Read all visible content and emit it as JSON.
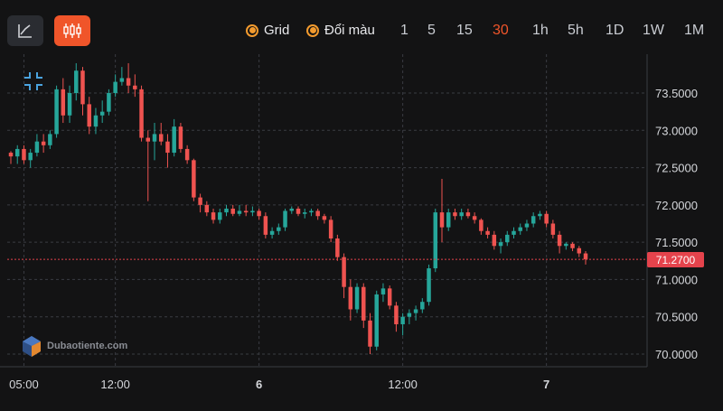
{
  "toolbar": {
    "line_tool_icon": "line-chart-icon",
    "candle_tool_icon": "candlestick-icon",
    "grid_label": "Grid",
    "color_label": "Đổi màu",
    "timeframes": [
      "1",
      "5",
      "15",
      "30",
      "1h",
      "5h",
      "1D",
      "1W",
      "1M"
    ],
    "active_timeframe": "30",
    "accent_color": "#f0552a"
  },
  "watermark": {
    "text": "Dubaotiente.com"
  },
  "current_price": "71.2700",
  "colors": {
    "up": "#26a69a",
    "down": "#ef5350",
    "price_line": "#e5434c"
  },
  "chart_data": {
    "type": "candlestick",
    "title": "",
    "ylim": [
      70.0,
      74.0
    ],
    "y_ticks": [
      "73.5000",
      "73.0000",
      "72.5000",
      "72.0000",
      "71.5000",
      "71.0000",
      "70.5000",
      "70.0000"
    ],
    "y_tick_values": [
      73.5,
      73.0,
      72.5,
      72.0,
      71.5,
      71.0,
      70.5,
      70.0
    ],
    "x_ticks": [
      {
        "label": "05:00",
        "index": 2,
        "bold": false
      },
      {
        "label": "12:00",
        "index": 16,
        "bold": false
      },
      {
        "label": "6",
        "index": 38,
        "bold": true
      },
      {
        "label": "12:00",
        "index": 60,
        "bold": false
      },
      {
        "label": "7",
        "index": 82,
        "bold": true
      }
    ],
    "grid": true,
    "candles": [
      [
        72.7,
        72.72,
        72.55,
        72.65
      ],
      [
        72.65,
        72.8,
        72.55,
        72.75
      ],
      [
        72.75,
        72.8,
        72.55,
        72.6
      ],
      [
        72.6,
        72.75,
        72.5,
        72.7
      ],
      [
        72.7,
        72.95,
        72.65,
        72.85
      ],
      [
        72.85,
        72.95,
        72.7,
        72.8
      ],
      [
        72.8,
        73.0,
        72.75,
        72.95
      ],
      [
        72.95,
        73.6,
        72.9,
        73.55
      ],
      [
        73.55,
        73.7,
        73.1,
        73.2
      ],
      [
        73.2,
        73.6,
        73.1,
        73.5
      ],
      [
        73.5,
        73.9,
        73.4,
        73.8
      ],
      [
        73.8,
        73.85,
        73.2,
        73.35
      ],
      [
        73.35,
        73.45,
        72.95,
        73.05
      ],
      [
        73.05,
        73.3,
        72.95,
        73.2
      ],
      [
        73.2,
        73.4,
        73.1,
        73.25
      ],
      [
        73.25,
        73.55,
        73.2,
        73.5
      ],
      [
        73.5,
        73.75,
        73.45,
        73.65
      ],
      [
        73.65,
        73.85,
        73.6,
        73.7
      ],
      [
        73.7,
        73.9,
        73.5,
        73.6
      ],
      [
        73.6,
        73.75,
        73.45,
        73.55
      ],
      [
        73.55,
        73.6,
        72.85,
        72.9
      ],
      [
        72.9,
        73.0,
        72.05,
        72.85
      ],
      [
        72.85,
        73.1,
        72.6,
        72.95
      ],
      [
        72.95,
        73.1,
        72.8,
        72.85
      ],
      [
        72.85,
        72.95,
        72.5,
        72.7
      ],
      [
        72.7,
        73.15,
        72.65,
        73.05
      ],
      [
        73.05,
        73.1,
        72.7,
        72.75
      ],
      [
        72.75,
        72.8,
        72.55,
        72.6
      ],
      [
        72.6,
        72.62,
        72.05,
        72.1
      ],
      [
        72.1,
        72.15,
        71.9,
        72.0
      ],
      [
        72.0,
        72.05,
        71.85,
        71.9
      ],
      [
        71.9,
        71.95,
        71.75,
        71.8
      ],
      [
        71.8,
        71.95,
        71.75,
        71.9
      ],
      [
        71.9,
        72.0,
        71.85,
        71.95
      ],
      [
        71.95,
        72.0,
        71.85,
        71.88
      ],
      [
        71.88,
        72.0,
        71.85,
        71.92
      ],
      [
        71.92,
        72.0,
        71.85,
        71.9
      ],
      [
        71.9,
        71.98,
        71.85,
        71.92
      ],
      [
        71.92,
        71.95,
        71.8,
        71.85
      ],
      [
        71.85,
        71.9,
        71.55,
        71.6
      ],
      [
        71.6,
        71.7,
        71.55,
        71.65
      ],
      [
        71.65,
        71.75,
        71.6,
        71.7
      ],
      [
        71.7,
        71.95,
        71.65,
        71.92
      ],
      [
        71.92,
        71.98,
        71.88,
        71.95
      ],
      [
        71.95,
        71.98,
        71.85,
        71.88
      ],
      [
        71.88,
        71.95,
        71.82,
        71.9
      ],
      [
        71.9,
        71.95,
        71.85,
        71.92
      ],
      [
        71.92,
        71.95,
        71.8,
        71.85
      ],
      [
        71.85,
        71.88,
        71.75,
        71.8
      ],
      [
        71.8,
        71.85,
        71.5,
        71.55
      ],
      [
        71.55,
        71.6,
        71.25,
        71.3
      ],
      [
        71.3,
        71.35,
        70.75,
        70.9
      ],
      [
        70.9,
        71.0,
        70.45,
        70.6
      ],
      [
        70.6,
        70.95,
        70.55,
        70.9
      ],
      [
        70.9,
        70.95,
        70.35,
        70.45
      ],
      [
        70.45,
        70.55,
        70.0,
        70.1
      ],
      [
        70.1,
        70.85,
        70.05,
        70.8
      ],
      [
        70.8,
        70.95,
        70.7,
        70.88
      ],
      [
        70.88,
        70.92,
        70.6,
        70.65
      ],
      [
        70.65,
        70.7,
        70.3,
        70.4
      ],
      [
        70.4,
        70.55,
        70.25,
        70.5
      ],
      [
        70.5,
        70.6,
        70.4,
        70.55
      ],
      [
        70.55,
        70.65,
        70.45,
        70.6
      ],
      [
        70.6,
        70.75,
        70.55,
        70.7
      ],
      [
        70.7,
        71.2,
        70.65,
        71.15
      ],
      [
        71.15,
        71.95,
        71.1,
        71.9
      ],
      [
        71.9,
        72.35,
        71.5,
        71.7
      ],
      [
        71.7,
        71.95,
        71.65,
        71.9
      ],
      [
        71.9,
        71.95,
        71.8,
        71.85
      ],
      [
        71.85,
        71.95,
        71.8,
        71.9
      ],
      [
        71.9,
        71.95,
        71.82,
        71.85
      ],
      [
        71.85,
        71.9,
        71.75,
        71.8
      ],
      [
        71.8,
        71.82,
        71.6,
        71.65
      ],
      [
        71.65,
        71.7,
        71.55,
        71.6
      ],
      [
        71.6,
        71.65,
        71.4,
        71.45
      ],
      [
        71.45,
        71.55,
        71.35,
        71.5
      ],
      [
        71.5,
        71.65,
        71.45,
        71.6
      ],
      [
        71.6,
        71.7,
        71.55,
        71.65
      ],
      [
        71.65,
        71.75,
        71.6,
        71.7
      ],
      [
        71.7,
        71.8,
        71.65,
        71.75
      ],
      [
        71.75,
        71.9,
        71.7,
        71.85
      ],
      [
        71.85,
        71.92,
        71.8,
        71.88
      ],
      [
        71.88,
        71.92,
        71.7,
        71.75
      ],
      [
        71.75,
        71.8,
        71.55,
        71.6
      ],
      [
        71.6,
        71.65,
        71.35,
        71.45
      ],
      [
        71.45,
        71.5,
        71.4,
        71.48
      ],
      [
        71.48,
        71.5,
        71.38,
        71.42
      ],
      [
        71.42,
        71.45,
        71.3,
        71.35
      ],
      [
        71.35,
        71.38,
        71.2,
        71.27
      ]
    ]
  }
}
